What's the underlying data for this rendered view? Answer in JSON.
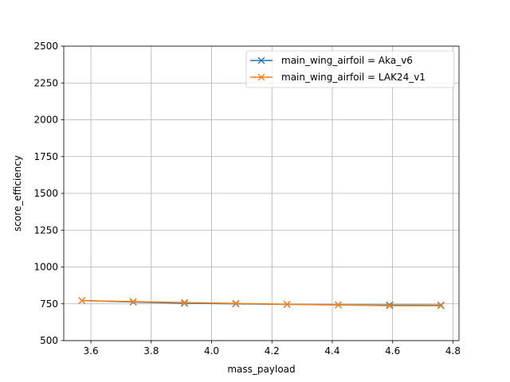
{
  "chart_data": {
    "type": "line",
    "title": "",
    "xlabel": "mass_payload",
    "ylabel": "score_efficiency",
    "xlim": [
      3.51,
      4.82
    ],
    "ylim": [
      500,
      2500
    ],
    "xticks": [
      3.6,
      3.8,
      4.0,
      4.2,
      4.4,
      4.6,
      4.8
    ],
    "xtick_labels": [
      "3.6",
      "3.8",
      "4.0",
      "4.2",
      "4.4",
      "4.6",
      "4.8"
    ],
    "yticks": [
      500,
      750,
      1000,
      1250,
      1500,
      1750,
      2000,
      2250,
      2500
    ],
    "ytick_labels": [
      "500",
      "750",
      "1000",
      "1250",
      "1500",
      "1750",
      "2000",
      "2250",
      "2500"
    ],
    "grid": true,
    "legend_position": "top-right",
    "marker": "x",
    "series": [
      {
        "name": "main_wing_airfoil = Aka_v6",
        "color": "#1f77b4",
        "x": [
          3.57,
          3.74,
          3.91,
          4.08,
          4.25,
          4.42,
          4.59,
          4.76
        ],
        "y": [
          772,
          762,
          754,
          750,
          746,
          743,
          742,
          741
        ]
      },
      {
        "name": "main_wing_airfoil = LAK24_v1",
        "color": "#ff7f0e",
        "x": [
          3.57,
          3.74,
          3.91,
          4.08,
          4.25,
          4.42,
          4.59,
          4.76
        ],
        "y": [
          772,
          765,
          759,
          753,
          747,
          742,
          737,
          737
        ]
      }
    ]
  }
}
